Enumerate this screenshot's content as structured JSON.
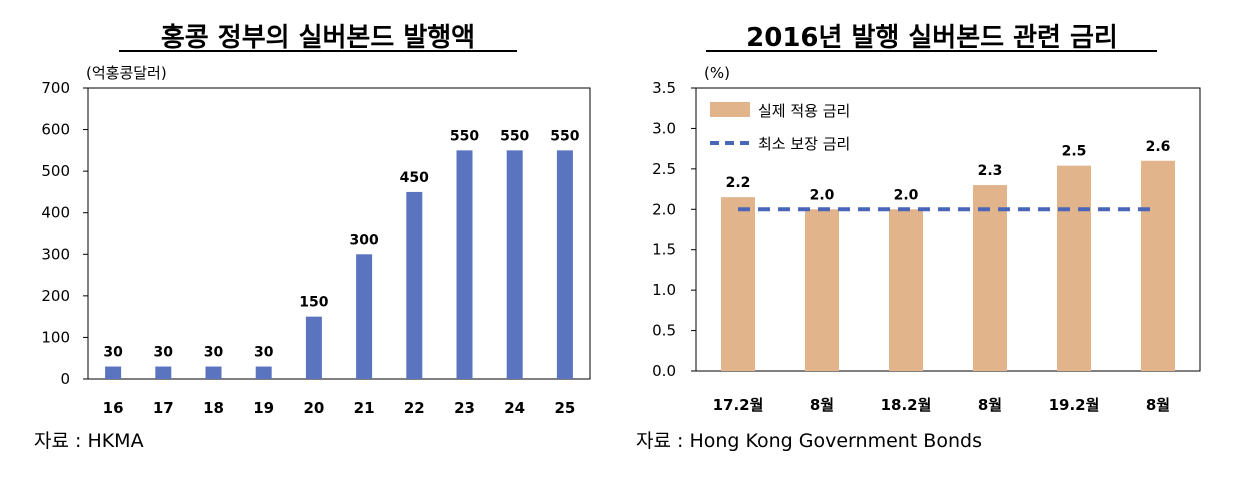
{
  "chart_data": [
    {
      "type": "bar",
      "title": "홍콩 정부의 실버본드 발행액",
      "unit_label": "(억홍콩달러)",
      "source": "자료 : HKMA",
      "categories": [
        "16",
        "17",
        "18",
        "19",
        "20",
        "21",
        "22",
        "23",
        "24",
        "25"
      ],
      "series": [
        {
          "values": [
            30,
            30,
            30,
            30,
            150,
            300,
            450,
            550,
            550,
            550
          ]
        }
      ],
      "data_labels": [
        "30",
        "30",
        "30",
        "30",
        "150",
        "300",
        "450",
        "550",
        "550",
        "550"
      ],
      "ylim": [
        0,
        700
      ],
      "yticks": [
        "0",
        "100",
        "200",
        "300",
        "400",
        "500",
        "600",
        "700"
      ],
      "colors": {
        "bar": "#5b74c0"
      },
      "grid": false
    },
    {
      "type": "bar",
      "title": "2016년 발행 실버본드 관련 금리",
      "unit_label": "(%)",
      "source": "자료 : Hong Kong Government Bonds",
      "categories": [
        "17.2월",
        "8월",
        "18.2월",
        "8월",
        "19.2월",
        "8월"
      ],
      "series": [
        {
          "name": "실제 적용 금리",
          "kind": "bar",
          "values": [
            2.15,
            2.0,
            2.0,
            2.3,
            2.54,
            2.6
          ]
        },
        {
          "name": "최소 보장 금리",
          "kind": "line-dashed",
          "values": [
            2.0,
            2.0,
            2.0,
            2.0,
            2.0,
            2.0
          ]
        }
      ],
      "data_labels": [
        "2.2",
        "2.0",
        "2.0",
        "2.3",
        "2.5",
        "2.6"
      ],
      "ylim": [
        0,
        3.5
      ],
      "yticks": [
        "0.0",
        "0.5",
        "1.0",
        "1.5",
        "2.0",
        "2.5",
        "3.0",
        "3.5"
      ],
      "legend": "top-left",
      "colors": {
        "bar": "#e2b48c",
        "line": "#4a66b8"
      },
      "grid": false
    }
  ]
}
